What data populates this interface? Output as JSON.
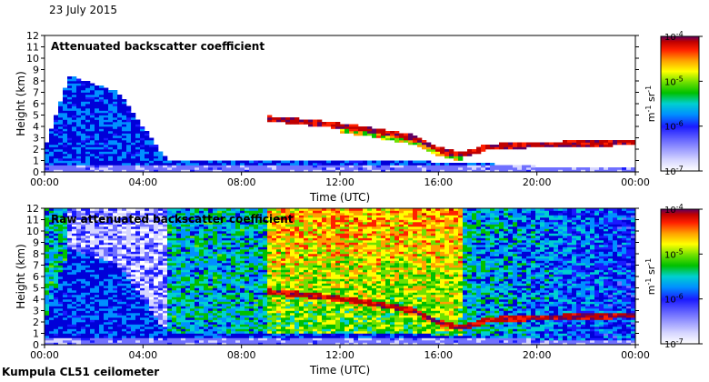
{
  "header": {
    "date": "23 July 2015"
  },
  "footer": {
    "station": "Kumpula CL51 ceilometer"
  },
  "colors": {
    "colormap": [
      "#ffffff",
      "#d6d6ff",
      "#7070ff",
      "#1a1aff",
      "#0000d8",
      "#0090ff",
      "#00d0d0",
      "#00c000",
      "#70e000",
      "#ffff00",
      "#ffa000",
      "#ff2000",
      "#c00000",
      "#600060"
    ],
    "frame": "#000000"
  },
  "chart_data": [
    {
      "type": "heatmap",
      "title": "Attenuated backscatter coefficient",
      "xlabel": "Time (UTC)",
      "ylabel": "Height (km)",
      "xticks": [
        "00:00",
        "04:00",
        "08:00",
        "12:00",
        "16:00",
        "20:00",
        "00:00"
      ],
      "xlim_hours": [
        0,
        24
      ],
      "ylim_km": [
        0,
        12
      ],
      "yticks": [
        "0",
        "1",
        "2",
        "3",
        "4",
        "5",
        "6",
        "7",
        "8",
        "9",
        "10",
        "11",
        "12"
      ],
      "colorbar": {
        "unit": "m-1 sr-1",
        "scale": "log",
        "range": [
          1e-07,
          0.0001
        ],
        "ticks": [
          {
            "base": "10",
            "exp": "-4"
          },
          {
            "base": "10",
            "exp": "-5"
          },
          {
            "base": "10",
            "exp": "-6"
          },
          {
            "base": "10",
            "exp": "-7"
          }
        ]
      },
      "features": {
        "boundary_layer": [
          [
            0,
            2.0
          ],
          [
            1,
            8.5
          ],
          [
            3,
            7.0
          ],
          [
            5,
            1.0
          ],
          [
            9,
            1.0
          ],
          [
            14,
            1.0
          ],
          [
            17.5,
            0.8
          ],
          [
            20,
            0.5
          ],
          [
            24,
            0.5
          ]
        ],
        "cloud_layer": [
          [
            9,
            4.7
          ],
          [
            11,
            4.3
          ],
          [
            13,
            3.8
          ],
          [
            15,
            3.0
          ],
          [
            16,
            2.0
          ],
          [
            17,
            1.5
          ],
          [
            18,
            2.2
          ],
          [
            20,
            2.4
          ],
          [
            24,
            2.6
          ]
        ]
      }
    },
    {
      "type": "heatmap",
      "title": "Raw attenuated backscatter coefficient",
      "xlabel": "Time (UTC)",
      "ylabel": "Height (km)",
      "xticks": [
        "00:00",
        "04:00",
        "08:00",
        "12:00",
        "16:00",
        "20:00",
        "00:00"
      ],
      "xlim_hours": [
        0,
        24
      ],
      "ylim_km": [
        0,
        12
      ],
      "yticks": [
        "0",
        "1",
        "2",
        "3",
        "4",
        "5",
        "6",
        "7",
        "8",
        "9",
        "10",
        "11",
        "12"
      ],
      "colorbar": {
        "unit": "m-1 sr-1",
        "scale": "log",
        "range": [
          1e-07,
          0.0001
        ],
        "ticks": [
          {
            "base": "10",
            "exp": "-4"
          },
          {
            "base": "10",
            "exp": "-5"
          },
          {
            "base": "10",
            "exp": "-6"
          },
          {
            "base": "10",
            "exp": "-7"
          }
        ]
      }
    }
  ]
}
